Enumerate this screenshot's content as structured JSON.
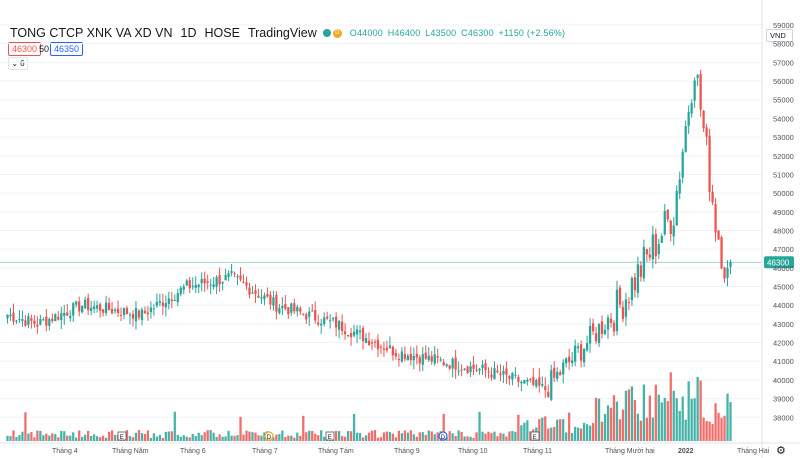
{
  "header": {
    "symbol": "TONG CTCP XNK VA XD VN",
    "interval": "1D",
    "exchange": "HOSE",
    "source": "TradingView",
    "badge": "D",
    "ohlc": {
      "open": "O44000",
      "high": "H46400",
      "low": "L43500",
      "close": "C46300",
      "change": "+1150 (+2.56%)"
    }
  },
  "trade": {
    "bid": "46300",
    "spread": "50",
    "ask": "46350"
  },
  "indicator_toggle": {
    "count": "6"
  },
  "currency": "VND",
  "colors": {
    "up": "#26a69a",
    "down": "#ef5350",
    "grid": "#f0f3fa",
    "text": "#131722",
    "last_price_line": "#26a69a"
  },
  "price_axis": {
    "ticks": [
      "59000",
      "58000",
      "57000",
      "56000",
      "55000",
      "54000",
      "53000",
      "52000",
      "51000",
      "50000",
      "49000",
      "48000",
      "47000",
      "46000",
      "45000",
      "44000",
      "43000",
      "42000",
      "41000",
      "40000",
      "39000",
      "38000"
    ],
    "last_price_label": "46300"
  },
  "time_axis": {
    "ticks": [
      "Tháng 4",
      "Tháng Năm",
      "Tháng 6",
      "Tháng 7",
      "Tháng Tám",
      "Tháng 9",
      "Tháng 10",
      "Tháng 11",
      "Tháng Mười hai",
      "2022",
      "Tháng Hai"
    ]
  },
  "event_markers": [
    "E",
    "D",
    "E",
    "D",
    "E"
  ],
  "chart_data": {
    "type": "candlestick",
    "title": "TONG CTCP XNK VA XD VN",
    "ylim": [
      38000,
      59000
    ],
    "last_close": 46300,
    "x_labels": [
      "Tháng 4",
      "Tháng Năm",
      "Tháng 6",
      "Tháng 7",
      "Tháng Tám",
      "Tháng 9",
      "Tháng 10",
      "Tháng 11",
      "Tháng Mười hai",
      "2022",
      "Tháng Hai"
    ],
    "anchors_index": [
      0,
      10,
      25,
      45,
      60,
      75,
      90,
      110,
      130,
      160,
      180,
      205,
      223,
      230,
      237,
      243
    ],
    "anchors_close": [
      43500,
      43000,
      44000,
      43500,
      45000,
      45500,
      44000,
      43000,
      41500,
      40500,
      39500,
      44000,
      49000,
      57000,
      48500,
      44000
    ]
  }
}
